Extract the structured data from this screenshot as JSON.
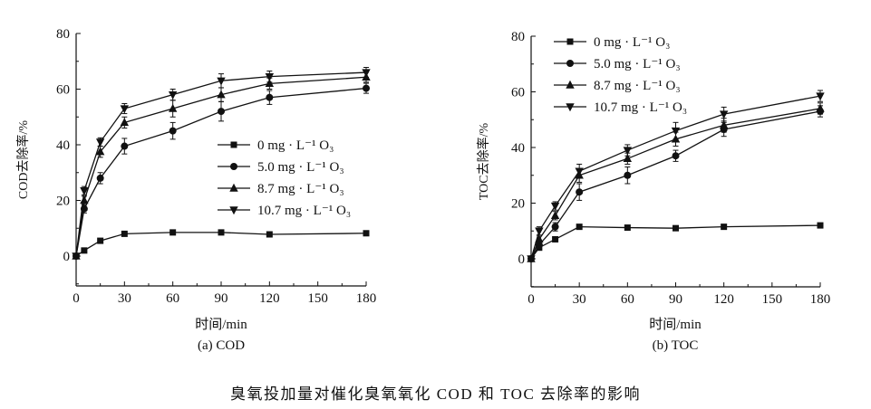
{
  "chart_data": [
    {
      "type": "line",
      "panel_label": "(a) COD",
      "xlabel": "时间/min",
      "ylabel": "COD去除率/%",
      "xlim": [
        0,
        180
      ],
      "ylim": [
        -10,
        80
      ],
      "xticks": [
        0,
        30,
        60,
        90,
        120,
        150,
        180
      ],
      "yticks": [
        0,
        20,
        40,
        60,
        80
      ],
      "grid": false,
      "legend": "center-right",
      "x": [
        0,
        5,
        15,
        30,
        60,
        90,
        120,
        180
      ],
      "series": [
        {
          "name": "0 mg · L⁻¹ O₃",
          "marker": "square",
          "values": [
            0,
            2,
            5.5,
            8,
            8.5,
            8.5,
            7.8,
            8.2
          ],
          "error": [
            0,
            0,
            0,
            0,
            0,
            0,
            0,
            0
          ]
        },
        {
          "name": "5.0 mg · L⁻¹ O₃",
          "marker": "circle",
          "values": [
            0,
            17,
            28,
            39.5,
            45,
            52,
            57,
            60.3
          ],
          "error": [
            0,
            1.5,
            2,
            2.8,
            3,
            3.5,
            2.5,
            1.8
          ]
        },
        {
          "name": "8.7 mg · L⁻¹ O₃",
          "marker": "triangle-up",
          "values": [
            0,
            20,
            37.5,
            48,
            53,
            58,
            62,
            64.3
          ],
          "error": [
            0,
            1.5,
            2,
            2,
            3,
            2.5,
            2,
            1.8
          ]
        },
        {
          "name": "10.7 mg · L⁻¹ O₃",
          "marker": "triangle-down",
          "values": [
            0,
            23.5,
            41,
            53,
            58,
            63,
            64.5,
            66
          ],
          "error": [
            0,
            1.5,
            1.5,
            1.8,
            2,
            2.5,
            2,
            1.8
          ]
        }
      ]
    },
    {
      "type": "line",
      "panel_label": "(b) TOC",
      "xlabel": "时间/min",
      "ylabel": "TOC去除率/%",
      "xlim": [
        0,
        180
      ],
      "ylim": [
        -10,
        80
      ],
      "xticks": [
        0,
        30,
        60,
        90,
        120,
        150,
        180
      ],
      "yticks": [
        0,
        20,
        40,
        60,
        80
      ],
      "grid": false,
      "legend": "top-left",
      "x": [
        0,
        5,
        15,
        30,
        60,
        90,
        120,
        180
      ],
      "series": [
        {
          "name": "0 mg · L⁻¹ O₃",
          "marker": "square",
          "values": [
            0,
            4,
            7,
            11.5,
            11.2,
            11,
            11.5,
            12
          ],
          "error": [
            0,
            0,
            0,
            0,
            0,
            0,
            0,
            0
          ]
        },
        {
          "name": "5.0 mg · L⁻¹ O₃",
          "marker": "circle",
          "values": [
            0,
            5,
            11.5,
            24,
            30,
            37,
            46.5,
            53
          ],
          "error": [
            0,
            1.5,
            1.5,
            3,
            3,
            2,
            2.5,
            2
          ]
        },
        {
          "name": "8.7 mg · L⁻¹ O₃",
          "marker": "triangle-up",
          "values": [
            0,
            7,
            15.5,
            30,
            36,
            43,
            48,
            54
          ],
          "error": [
            0,
            1.5,
            1.5,
            2.5,
            2,
            2.5,
            2.5,
            2
          ]
        },
        {
          "name": "10.7 mg · L⁻¹ O₃",
          "marker": "triangle-down",
          "values": [
            0,
            10,
            19,
            31.5,
            39,
            46,
            52,
            58.5
          ],
          "error": [
            0,
            1.5,
            1.5,
            2.5,
            2,
            3,
            2.5,
            2
          ]
        }
      ]
    }
  ],
  "caption": "臭氧投加量对催化臭氧氧化 COD 和 TOC 去除率的影响"
}
